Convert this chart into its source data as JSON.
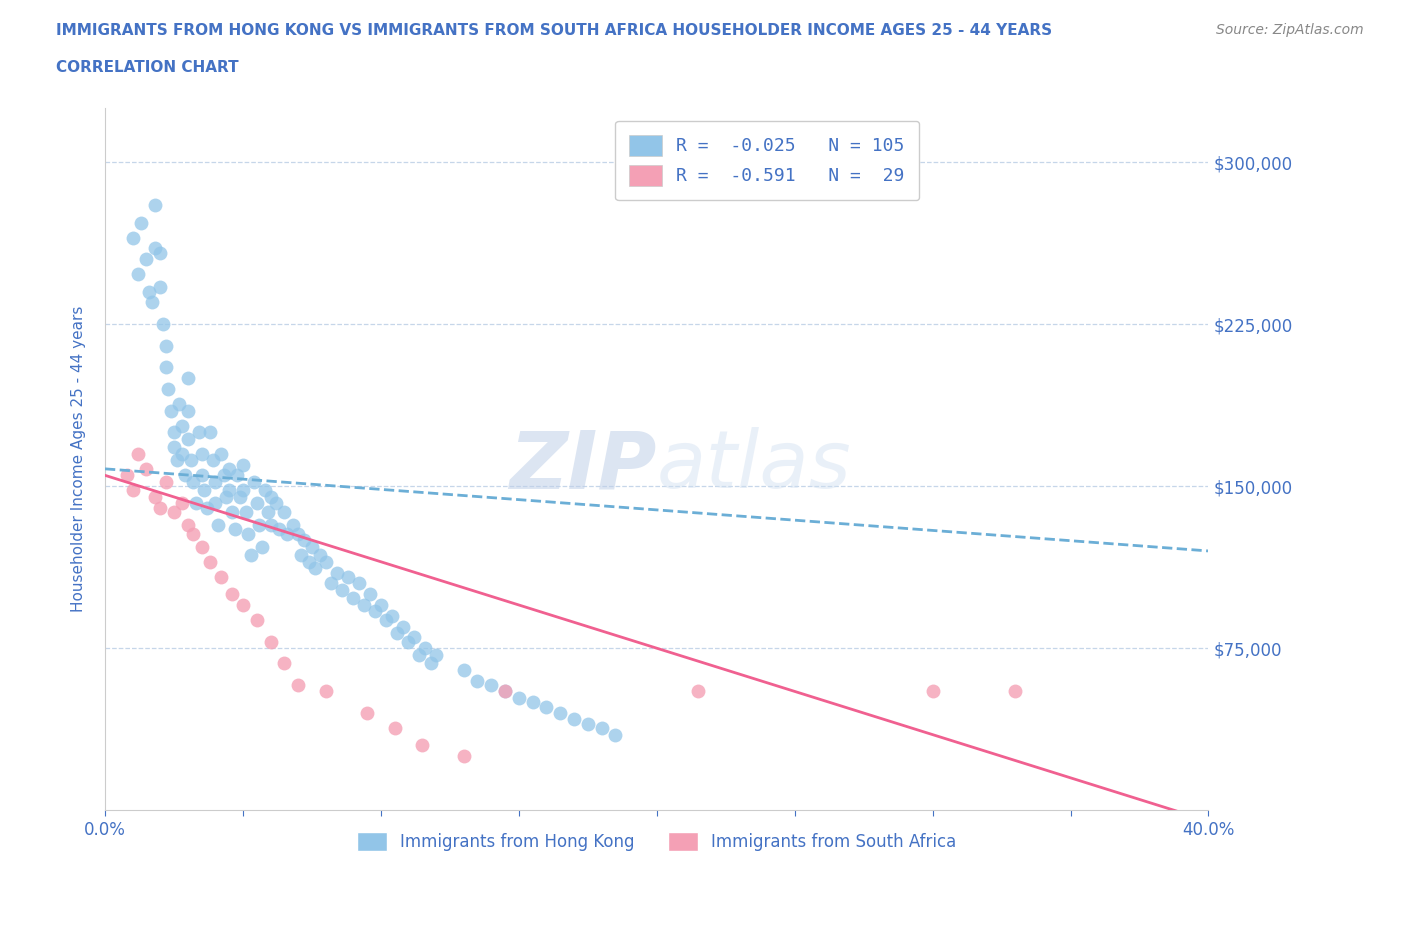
{
  "title_line1": "IMMIGRANTS FROM HONG KONG VS IMMIGRANTS FROM SOUTH AFRICA HOUSEHOLDER INCOME AGES 25 - 44 YEARS",
  "title_line2": "CORRELATION CHART",
  "source_text": "Source: ZipAtlas.com",
  "ylabel": "Householder Income Ages 25 - 44 years",
  "xlim": [
    0.0,
    0.4
  ],
  "ylim": [
    0,
    325000
  ],
  "r_hk": -0.025,
  "n_hk": 105,
  "r_sa": -0.591,
  "n_sa": 29,
  "hk_color": "#92c5e8",
  "sa_color": "#f4a0b5",
  "trend_color_hk": "#6baed6",
  "trend_color_sa": "#f06090",
  "title_color": "#4472c4",
  "axis_label_color": "#4472c4",
  "tick_label_color": "#4472c4",
  "legend_text_color": "#4472c4",
  "hk_scatter_x": [
    0.01,
    0.012,
    0.013,
    0.015,
    0.016,
    0.017,
    0.018,
    0.018,
    0.02,
    0.02,
    0.021,
    0.022,
    0.022,
    0.023,
    0.024,
    0.025,
    0.025,
    0.026,
    0.027,
    0.028,
    0.028,
    0.029,
    0.03,
    0.03,
    0.03,
    0.031,
    0.032,
    0.033,
    0.034,
    0.035,
    0.035,
    0.036,
    0.037,
    0.038,
    0.039,
    0.04,
    0.04,
    0.041,
    0.042,
    0.043,
    0.044,
    0.045,
    0.045,
    0.046,
    0.047,
    0.048,
    0.049,
    0.05,
    0.05,
    0.051,
    0.052,
    0.053,
    0.054,
    0.055,
    0.056,
    0.057,
    0.058,
    0.059,
    0.06,
    0.06,
    0.062,
    0.063,
    0.065,
    0.066,
    0.068,
    0.07,
    0.071,
    0.072,
    0.074,
    0.075,
    0.076,
    0.078,
    0.08,
    0.082,
    0.084,
    0.086,
    0.088,
    0.09,
    0.092,
    0.094,
    0.096,
    0.098,
    0.1,
    0.102,
    0.104,
    0.106,
    0.108,
    0.11,
    0.112,
    0.114,
    0.116,
    0.118,
    0.12,
    0.13,
    0.135,
    0.14,
    0.145,
    0.15,
    0.155,
    0.16,
    0.165,
    0.17,
    0.175,
    0.18,
    0.185
  ],
  "hk_scatter_y": [
    265000,
    248000,
    272000,
    255000,
    240000,
    235000,
    280000,
    260000,
    258000,
    242000,
    225000,
    215000,
    205000,
    195000,
    185000,
    175000,
    168000,
    162000,
    188000,
    178000,
    165000,
    155000,
    200000,
    185000,
    172000,
    162000,
    152000,
    142000,
    175000,
    165000,
    155000,
    148000,
    140000,
    175000,
    162000,
    152000,
    142000,
    132000,
    165000,
    155000,
    145000,
    158000,
    148000,
    138000,
    130000,
    155000,
    145000,
    160000,
    148000,
    138000,
    128000,
    118000,
    152000,
    142000,
    132000,
    122000,
    148000,
    138000,
    145000,
    132000,
    142000,
    130000,
    138000,
    128000,
    132000,
    128000,
    118000,
    125000,
    115000,
    122000,
    112000,
    118000,
    115000,
    105000,
    110000,
    102000,
    108000,
    98000,
    105000,
    95000,
    100000,
    92000,
    95000,
    88000,
    90000,
    82000,
    85000,
    78000,
    80000,
    72000,
    75000,
    68000,
    72000,
    65000,
    60000,
    58000,
    55000,
    52000,
    50000,
    48000,
    45000,
    42000,
    40000,
    38000,
    35000
  ],
  "sa_scatter_x": [
    0.008,
    0.01,
    0.012,
    0.015,
    0.018,
    0.02,
    0.022,
    0.025,
    0.028,
    0.03,
    0.032,
    0.035,
    0.038,
    0.042,
    0.046,
    0.05,
    0.055,
    0.06,
    0.065,
    0.07,
    0.08,
    0.095,
    0.105,
    0.115,
    0.13,
    0.145,
    0.215,
    0.3,
    0.33
  ],
  "sa_scatter_y": [
    155000,
    148000,
    165000,
    158000,
    145000,
    140000,
    152000,
    138000,
    142000,
    132000,
    128000,
    122000,
    115000,
    108000,
    100000,
    95000,
    88000,
    78000,
    68000,
    58000,
    55000,
    45000,
    38000,
    30000,
    25000,
    55000,
    55000,
    55000,
    55000
  ],
  "hk_trend_x0": 0.0,
  "hk_trend_y0": 158000,
  "hk_trend_x1": 0.4,
  "hk_trend_y1": 120000,
  "sa_trend_x0": 0.0,
  "sa_trend_y0": 155000,
  "sa_trend_x1": 0.4,
  "sa_trend_y1": -5000
}
